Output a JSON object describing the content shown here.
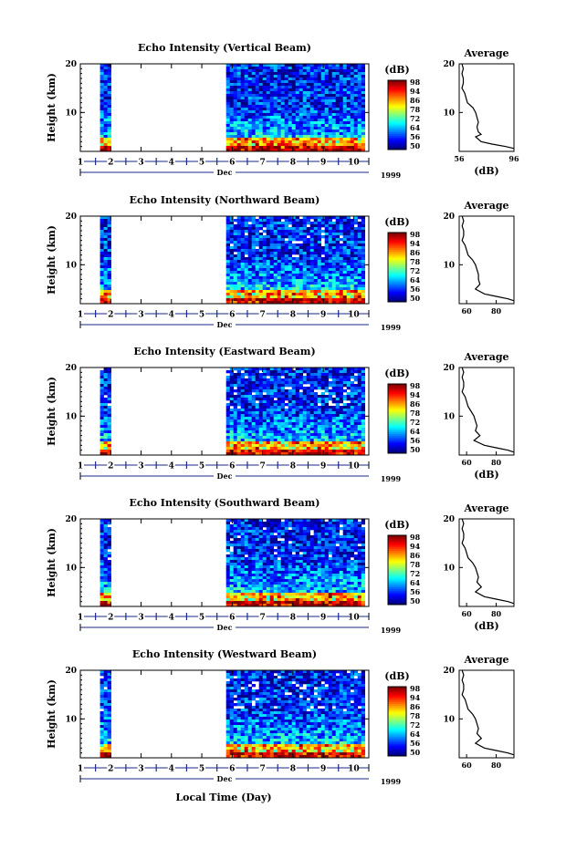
{
  "figure": {
    "xlabel": "Local Time (Day)",
    "date_month": "Dec",
    "date_year": "1999"
  },
  "chart_data": [
    {
      "type": "heatmap",
      "title": "Echo Intensity (Vertical Beam)",
      "ylabel": "Height (km)",
      "yticks": [
        10,
        20
      ],
      "ylim": [
        2,
        20
      ],
      "xticks": [
        "1",
        "2",
        "3",
        "4",
        "5",
        "6",
        "7",
        "8",
        "9",
        "10"
      ],
      "xlim": [
        1,
        10.5
      ],
      "data_intervals": [
        [
          1.65,
          2.0
        ],
        [
          5.8,
          10.3
        ]
      ],
      "colorbar": {
        "label": "(dB)",
        "ticks": [
          50,
          56,
          64,
          72,
          78,
          86,
          94,
          98
        ]
      },
      "average": {
        "title": "Average",
        "xlabel": "(dB)",
        "xticks": [
          56,
          96
        ],
        "xlim": [
          56,
          96
        ],
        "ylim": [
          2,
          20
        ],
        "yticks": [
          10,
          20
        ],
        "profile": [
          [
            58,
            20
          ],
          [
            59,
            19
          ],
          [
            58,
            18
          ],
          [
            59,
            17
          ],
          [
            59,
            16
          ],
          [
            58,
            15
          ],
          [
            60,
            14
          ],
          [
            61,
            13
          ],
          [
            62,
            12
          ],
          [
            66,
            11
          ],
          [
            68,
            10
          ],
          [
            69,
            9
          ],
          [
            70,
            8
          ],
          [
            69,
            7
          ],
          [
            70,
            6
          ],
          [
            72,
            5.5
          ],
          [
            68,
            5
          ],
          [
            72,
            4
          ],
          [
            80,
            3.5
          ],
          [
            90,
            3
          ],
          [
            96,
            2.6
          ]
        ]
      }
    },
    {
      "type": "heatmap",
      "title": "Echo Intensity (Northward Beam)",
      "ylabel": "Height (km)",
      "yticks": [
        10,
        20
      ],
      "ylim": [
        2,
        20
      ],
      "xticks": [
        "1",
        "2",
        "3",
        "4",
        "5",
        "6",
        "7",
        "8",
        "9",
        "10"
      ],
      "xlim": [
        1,
        10.5
      ],
      "data_intervals": [
        [
          1.65,
          2.0
        ],
        [
          5.8,
          10.3
        ]
      ],
      "colorbar": {
        "label": "(dB)",
        "ticks": [
          50,
          56,
          64,
          72,
          78,
          86,
          94,
          98
        ]
      },
      "average": {
        "title": "Average",
        "xlabel": "",
        "xticks": [
          60,
          80
        ],
        "xlim": [
          55,
          92
        ],
        "ylim": [
          2,
          20
        ],
        "yticks": [
          10,
          20
        ],
        "profile": [
          [
            57,
            20
          ],
          [
            58,
            19
          ],
          [
            57,
            18
          ],
          [
            58,
            17
          ],
          [
            58,
            16
          ],
          [
            57,
            15
          ],
          [
            59,
            14
          ],
          [
            60,
            13
          ],
          [
            61,
            12
          ],
          [
            64,
            11
          ],
          [
            66,
            10
          ],
          [
            67,
            9
          ],
          [
            68,
            8
          ],
          [
            68,
            7
          ],
          [
            69,
            6
          ],
          [
            66,
            5
          ],
          [
            72,
            4
          ],
          [
            80,
            3.5
          ],
          [
            88,
            3
          ],
          [
            92,
            2.6
          ]
        ]
      }
    },
    {
      "type": "heatmap",
      "title": "Echo Intensity (Eastward Beam)",
      "ylabel": "Height (km)",
      "yticks": [
        10,
        20
      ],
      "ylim": [
        2,
        20
      ],
      "xticks": [
        "1",
        "2",
        "3",
        "4",
        "5",
        "6",
        "7",
        "8",
        "9",
        "10"
      ],
      "xlim": [
        1,
        10.5
      ],
      "data_intervals": [
        [
          1.65,
          2.0
        ],
        [
          5.8,
          10.3
        ]
      ],
      "colorbar": {
        "label": "(dB)",
        "ticks": [
          50,
          56,
          64,
          72,
          78,
          86,
          94,
          98
        ]
      },
      "average": {
        "title": "Average",
        "xlabel": "(dB)",
        "xticks": [
          60,
          80
        ],
        "xlim": [
          55,
          92
        ],
        "ylim": [
          2,
          20
        ],
        "yticks": [
          10,
          20
        ],
        "profile": [
          [
            57,
            20
          ],
          [
            58,
            19
          ],
          [
            57,
            18
          ],
          [
            58,
            17
          ],
          [
            58,
            16
          ],
          [
            57,
            15
          ],
          [
            59,
            14
          ],
          [
            60,
            13
          ],
          [
            61,
            12
          ],
          [
            63,
            11
          ],
          [
            65,
            10
          ],
          [
            66,
            9
          ],
          [
            67,
            8
          ],
          [
            66,
            7
          ],
          [
            69,
            6
          ],
          [
            65,
            5
          ],
          [
            72,
            4
          ],
          [
            80,
            3.5
          ],
          [
            88,
            3
          ],
          [
            92,
            2.6
          ]
        ]
      }
    },
    {
      "type": "heatmap",
      "title": "Echo Intensity (Southward Beam)",
      "ylabel": "Height (km)",
      "yticks": [
        10,
        20
      ],
      "ylim": [
        2,
        20
      ],
      "xticks": [
        "1",
        "2",
        "3",
        "4",
        "5",
        "6",
        "7",
        "8",
        "9",
        "10"
      ],
      "xlim": [
        1,
        10.5
      ],
      "data_intervals": [
        [
          1.65,
          2.0
        ],
        [
          5.8,
          10.3
        ]
      ],
      "colorbar": {
        "label": "(dB)",
        "ticks": [
          50,
          56,
          64,
          72,
          78,
          86,
          94,
          98
        ]
      },
      "average": {
        "title": "Average",
        "xlabel": "(dB)",
        "xticks": [
          60,
          80
        ],
        "xlim": [
          55,
          92
        ],
        "ylim": [
          2,
          20
        ],
        "yticks": [
          10,
          20
        ],
        "profile": [
          [
            57,
            20
          ],
          [
            58,
            19
          ],
          [
            57,
            18
          ],
          [
            58,
            17
          ],
          [
            58,
            16
          ],
          [
            57,
            15
          ],
          [
            59,
            14
          ],
          [
            60,
            13
          ],
          [
            61,
            12
          ],
          [
            64,
            11
          ],
          [
            66,
            10
          ],
          [
            67,
            9
          ],
          [
            68,
            8
          ],
          [
            67,
            7
          ],
          [
            70,
            6
          ],
          [
            66,
            5
          ],
          [
            72,
            4
          ],
          [
            80,
            3.5
          ],
          [
            88,
            3
          ],
          [
            92,
            2.6
          ]
        ]
      }
    },
    {
      "type": "heatmap",
      "title": "Echo Intensity (Westward Beam)",
      "ylabel": "Height (km)",
      "yticks": [
        10,
        20
      ],
      "ylim": [
        2,
        20
      ],
      "xticks": [
        "1",
        "2",
        "3",
        "4",
        "5",
        "6",
        "7",
        "8",
        "9",
        "10"
      ],
      "xlim": [
        1,
        10.5
      ],
      "data_intervals": [
        [
          1.65,
          2.0
        ],
        [
          5.8,
          10.3
        ]
      ],
      "colorbar": {
        "label": "(dB)",
        "ticks": [
          50,
          56,
          64,
          72,
          78,
          86,
          94,
          98
        ]
      },
      "average": {
        "title": "Average",
        "xlabel": "",
        "xticks": [
          60,
          80
        ],
        "xlim": [
          55,
          92
        ],
        "ylim": [
          2,
          20
        ],
        "yticks": [
          10,
          20
        ],
        "profile": [
          [
            57,
            20
          ],
          [
            58,
            19
          ],
          [
            57,
            18
          ],
          [
            58,
            17
          ],
          [
            58,
            16
          ],
          [
            57,
            15
          ],
          [
            59,
            14
          ],
          [
            60,
            13
          ],
          [
            61,
            12
          ],
          [
            64,
            11
          ],
          [
            66,
            10
          ],
          [
            67,
            9
          ],
          [
            68,
            8
          ],
          [
            67,
            7
          ],
          [
            70,
            6
          ],
          [
            66,
            5
          ],
          [
            72,
            4
          ],
          [
            80,
            3.5
          ],
          [
            88,
            3
          ],
          [
            92,
            2.6
          ]
        ]
      }
    }
  ]
}
